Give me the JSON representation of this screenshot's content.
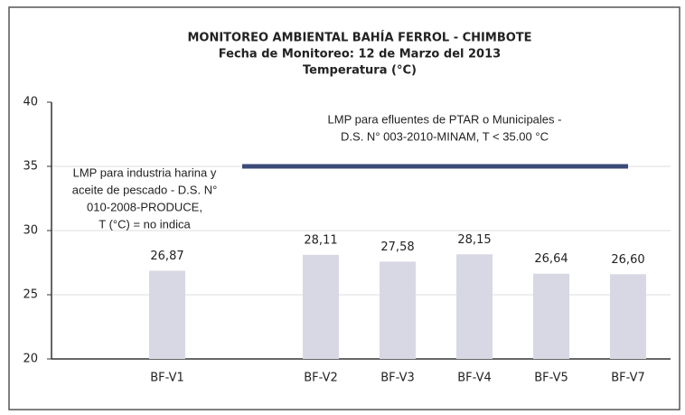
{
  "chart_data": {
    "type": "bar",
    "title": "MONITOREO AMBIENTAL BAHÍA FERROL - CHIMBOTE",
    "subtitle": "Fecha de Monitoreo: 12 de Marzo del 2013",
    "y_title": "Temperatura (°C)",
    "categories": [
      "BF-V1",
      null,
      "BF-V2",
      "BF-V3",
      "BF-V4",
      "BF-V5",
      "BF-V7"
    ],
    "values": [
      26.87,
      null,
      28.11,
      27.58,
      28.15,
      26.64,
      26.6
    ],
    "value_labels": [
      "26,87",
      null,
      "28,11",
      "27,58",
      "28,15",
      "26,64",
      "26,60"
    ],
    "color": "#d8d8e4",
    "ylim": [
      20,
      40
    ],
    "yticks": [
      20,
      25,
      30,
      35,
      40
    ],
    "grid": true,
    "limit_line": {
      "value": 35,
      "color": "#3c4a78"
    },
    "annotations": [
      {
        "lines": [
          "LMP para efluentes de PTAR o Municipales -",
          "D.S. N° 003-2010-MINAM, T < 35.00 °C"
        ]
      },
      {
        "lines": [
          "LMP para industria harina y",
          "aceite de pescado - D.S. N°",
          "010-2008-PRODUCE,",
          "T (°C) = no indica"
        ]
      }
    ]
  }
}
